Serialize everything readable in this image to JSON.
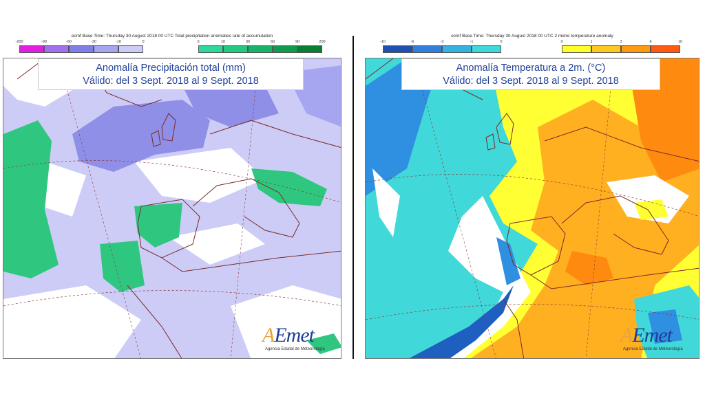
{
  "left": {
    "header": "ecmf Base Time: Thursday 30 August 2018 00 UTC Total precipitation anomalies rate of accumulation",
    "title_line1": "Anomalía Precipitación total (mm)",
    "title_line2": "Válido: del 3 Sept. 2018 al 9 Sept. 2018",
    "legend_neg": {
      "ticks": [
        "-200",
        "-90",
        "-60",
        "-30",
        "-10",
        "0"
      ],
      "colors": [
        "#e21ee2",
        "#a070ee",
        "#7f7fe8",
        "#a6a6f0",
        "#ccccf7"
      ]
    },
    "legend_pos": {
      "ticks": [
        "0",
        "10",
        "30",
        "60",
        "90",
        "200"
      ],
      "colors": [
        "#2dd89a",
        "#22c97f",
        "#17b368",
        "#0f9a50",
        "#0a7e33"
      ]
    },
    "map_colors": {
      "sea_wet_light": "#ccccf7",
      "dry_medium": "#a6a6f0",
      "dry_strong": "#8f8fe8",
      "wet": "#2fc780",
      "neutral": "#ffffff"
    }
  },
  "right": {
    "header": "ecmf Base Time: Thursday 30 August 2018 00 UTC 2 metre temperature anomaly",
    "title_line1": "Anomalía Temperatura a 2m. (°C)",
    "title_line2": "Válido: del 3 Sept. 2018 al 9 Sept. 2018",
    "legend_neg": {
      "ticks": [
        "-10",
        "-6",
        "-3",
        "-1",
        "0"
      ],
      "colors": [
        "#1f4fb0",
        "#2f7fdc",
        "#35b2e0",
        "#3fd8dc"
      ]
    },
    "legend_pos": {
      "ticks": [
        "0",
        "1",
        "3",
        "6",
        "10"
      ],
      "colors": [
        "#ffff2a",
        "#ffc81e",
        "#ff9a10",
        "#ff5a10"
      ]
    },
    "map_colors": {
      "cold_light": "#40d8d8",
      "cold_medium": "#2f8fe0",
      "cold_strong": "#1f5fc0",
      "warm_light": "#ffff33",
      "warm_medium": "#ffb020",
      "warm_strong": "#ff8a10",
      "neutral": "#ffffff"
    }
  },
  "logo": {
    "text": "AEmet",
    "subtitle": "Agencia Estatal de Meteorología"
  }
}
